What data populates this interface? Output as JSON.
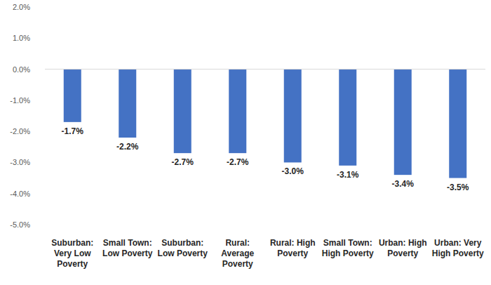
{
  "chart_data": {
    "type": "bar",
    "categories": [
      "Suburban: Very Low Poverty",
      "Small Town: Low Poverty",
      "Suburban: Low Poverty",
      "Rural: Average Poverty",
      "Rural: High Poverty",
      "Small Town: High Poverty",
      "Urban: High Poverty",
      "Urban: Very High Poverty"
    ],
    "values": [
      -1.7,
      -2.2,
      -2.7,
      -2.7,
      -3.0,
      -3.1,
      -3.4,
      -3.5
    ],
    "value_labels": [
      "-1.7%",
      "-2.2%",
      "-2.7%",
      "-2.7%",
      "-3.0%",
      "-3.1%",
      "-3.4%",
      "-3.5%"
    ],
    "color": "#4472c4",
    "ylim": [
      -5,
      2
    ],
    "yticks": [
      {
        "value": -5,
        "label": "-5.0%"
      },
      {
        "value": -4,
        "label": "-4.0%"
      },
      {
        "value": -3,
        "label": "-3.0%"
      },
      {
        "value": -2,
        "label": "-2.0%"
      },
      {
        "value": -1,
        "label": "-1.0%"
      },
      {
        "value": 0,
        "label": "0.0%"
      },
      {
        "value": 1,
        "label": "1.0%"
      },
      {
        "value": 2,
        "label": "2.0%"
      }
    ],
    "grid": false,
    "data_labels": true
  }
}
